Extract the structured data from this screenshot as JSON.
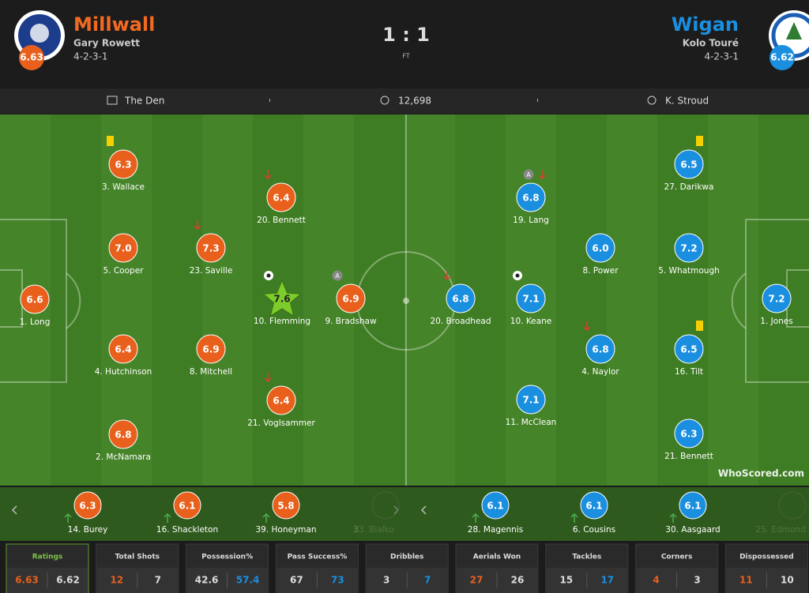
{
  "header": {
    "home": {
      "name": "Millwall",
      "manager": "Gary Rowett",
      "formation": "4-2-3-1",
      "rating": 6.63
    },
    "away": {
      "name": "Wigan",
      "manager": "Kolo Touré",
      "formation": "4-2-3-1",
      "rating": 6.62
    },
    "score": "1 : 1",
    "status": "FT"
  },
  "info": {
    "venue": "The Den",
    "attendance": "12,698",
    "referee": "K. Stroud"
  },
  "players": {
    "home": [
      {
        "label": "3. Wallace",
        "rating": "6.3"
      },
      {
        "label": "20. Bennett",
        "rating": "6.4"
      },
      {
        "label": "5. Cooper",
        "rating": "7.0"
      },
      {
        "label": "23. Saville",
        "rating": "7.3"
      },
      {
        "label": "1. Long",
        "rating": "6.6"
      },
      {
        "label": "10. Flemming",
        "rating": "7.6"
      },
      {
        "label": "9. Bradshaw",
        "rating": "6.9",
        "badge": "A"
      },
      {
        "label": "4. Hutchinson",
        "rating": "6.4"
      },
      {
        "label": "8. Mitchell",
        "rating": "6.9"
      },
      {
        "label": "21. Voglsammer",
        "rating": "6.4"
      },
      {
        "label": "2. McNamara",
        "rating": "6.8"
      }
    ],
    "away": [
      {
        "label": "27. Darikwa",
        "rating": "6.5"
      },
      {
        "label": "19. Lang",
        "rating": "6.8",
        "badge": "A"
      },
      {
        "label": "8. Power",
        "rating": "6.0"
      },
      {
        "label": "5. Whatmough",
        "rating": "7.2"
      },
      {
        "label": "20. Broadhead",
        "rating": "6.8"
      },
      {
        "label": "10. Keane",
        "rating": "7.1"
      },
      {
        "label": "1. Jones",
        "rating": "7.2"
      },
      {
        "label": "4. Naylor",
        "rating": "6.8"
      },
      {
        "label": "16. Tilt",
        "rating": "6.5"
      },
      {
        "label": "11. McClean",
        "rating": "7.1"
      },
      {
        "label": "21. Bennett",
        "rating": "6.3"
      }
    ]
  },
  "subs": {
    "home": [
      {
        "label": "14. Burey",
        "rating": "6.3"
      },
      {
        "label": "16. Shackleton",
        "rating": "6.1"
      },
      {
        "label": "39. Honeyman",
        "rating": "5.8"
      },
      {
        "label": "33. Bialko"
      }
    ],
    "away": [
      {
        "label": "28. Magennis",
        "rating": "6.1"
      },
      {
        "label": "6. Cousins",
        "rating": "6.1"
      },
      {
        "label": "30. Aasgaard",
        "rating": "6.1"
      },
      {
        "label": "25. Edmond"
      }
    ]
  },
  "watermark": "WhoScored.com",
  "stats": [
    {
      "label": "Ratings",
      "home": 6.63,
      "away": 6.62
    },
    {
      "label": "Total Shots",
      "home": 12,
      "away": 7
    },
    {
      "label": "Possession%",
      "home": 42.6,
      "away": 57.4
    },
    {
      "label": "Pass Success%",
      "home": 67,
      "away": 73
    },
    {
      "label": "Dribbles",
      "home": 3,
      "away": 7
    },
    {
      "label": "Aerials Won",
      "home": 27,
      "away": 26
    },
    {
      "label": "Tackles",
      "home": 15,
      "away": 17
    },
    {
      "label": "Corners",
      "home": 4,
      "away": 3
    },
    {
      "label": "Dispossessed",
      "home": 11,
      "away": 10
    }
  ]
}
